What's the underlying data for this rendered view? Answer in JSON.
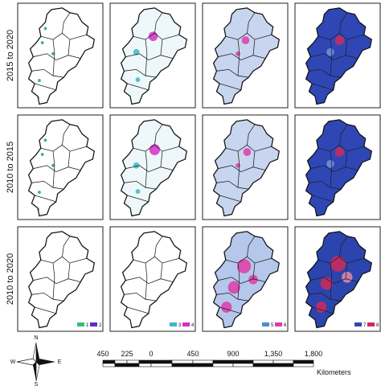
{
  "rows": [
    {
      "label": "2015 to 2020"
    },
    {
      "label": "2010 to 2015"
    },
    {
      "label": "2010 to 2020"
    }
  ],
  "legends": [
    {
      "items": [
        {
          "label": "1",
          "color": "#3cb97a"
        },
        {
          "label": "2",
          "color": "#5a2fc4"
        }
      ]
    },
    {
      "items": [
        {
          "label": "3",
          "color": "#3bb8c8"
        },
        {
          "label": "4",
          "color": "#d62fc8"
        }
      ]
    },
    {
      "items": [
        {
          "label": "5",
          "color": "#4a8fd0"
        },
        {
          "label": "6",
          "color": "#e03aa8"
        }
      ]
    },
    {
      "items": [
        {
          "label": "7",
          "color": "#2f47b5"
        },
        {
          "label": "8",
          "color": "#d02a5a"
        }
      ]
    }
  ],
  "compass": {
    "n": "N",
    "s": "S",
    "e": "E",
    "w": "W"
  },
  "scale_bar": {
    "ticks": [
      "450",
      "225",
      "0",
      "450",
      "900",
      "1,350",
      "1,800"
    ],
    "unit": "Kilometers"
  }
}
